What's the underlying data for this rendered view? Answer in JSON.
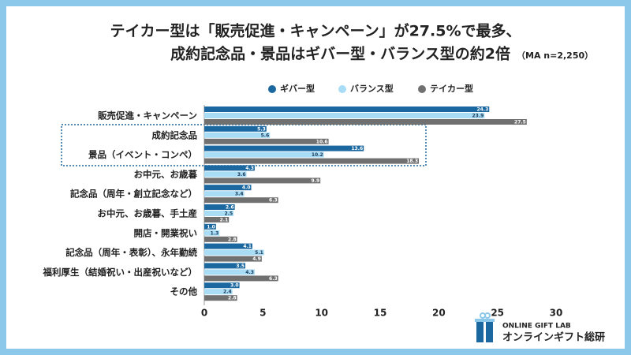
{
  "chart_data": {
    "type": "hbar",
    "title": "テイカー型は「販売促進・キャンペーン」が27.5%で最多、",
    "subtitle": "成約記念品・景品はギバー型・バランス型の約2倍",
    "note": "（MA n=2,250）",
    "categories": [
      "販売促進・キャンペーン",
      "成約記念品",
      "景品（イベント・コンペ）",
      "お中元、お歳暮",
      "記念品（周年・創立記念など）",
      "お中元、お歳暮、手土産",
      "開店・開業祝い",
      "記念品（周年・表彰）、永年勤続",
      "福利厚生（結婚祝い・出産祝いなど）",
      "その他"
    ],
    "series": [
      {
        "name": "ギバー型",
        "color": "#1b679f",
        "values": [
          24.3,
          5.3,
          13.6,
          4.3,
          4,
          2.6,
          1,
          4.1,
          3.5,
          3
        ],
        "value_labels": [
          "24.3",
          "5.3",
          "13.6",
          "4.3",
          "4.0",
          "2.6",
          "1.0",
          "4.1",
          "3.5",
          "3.0"
        ]
      },
      {
        "name": "バランス型",
        "color": "#a9dcf5",
        "values": [
          23.9,
          5.6,
          10.2,
          3.6,
          3.4,
          2.5,
          1.3,
          5.1,
          4.3,
          2.4
        ],
        "value_labels": [
          "23.9",
          "5.6",
          "10.2",
          "3.6",
          "3.4",
          "2.5",
          "1.3",
          "5.1",
          "4.3",
          "2.4"
        ]
      },
      {
        "name": "テイカー型",
        "color": "#707070",
        "values": [
          27.5,
          10.6,
          18.3,
          9.9,
          6.3,
          2.1,
          2.8,
          4.9,
          6.3,
          2.8
        ],
        "value_labels": [
          "27.5",
          "10.6",
          "18.3",
          "9.9",
          "6.3",
          "2.1",
          "2.8",
          "4.9",
          "6.3",
          "2.8"
        ]
      }
    ],
    "xlim": [
      0,
      30
    ],
    "xticks": [
      0,
      5,
      10,
      15,
      20,
      25,
      30
    ],
    "grid": false,
    "brand": {
      "en": "ONLINE GIFT LAB",
      "ja": "オンラインギフト総研"
    }
  }
}
